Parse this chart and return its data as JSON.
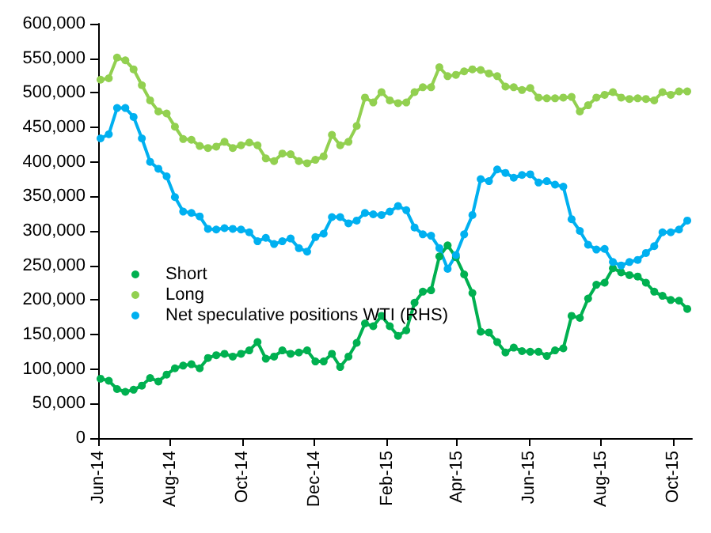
{
  "chart_data": {
    "type": "line",
    "x": [
      "2014-06-03",
      "2014-06-10",
      "2014-06-17",
      "2014-06-24",
      "2014-07-01",
      "2014-07-08",
      "2014-07-15",
      "2014-07-22",
      "2014-07-29",
      "2014-08-05",
      "2014-08-12",
      "2014-08-19",
      "2014-08-26",
      "2014-09-02",
      "2014-09-09",
      "2014-09-16",
      "2014-09-23",
      "2014-09-30",
      "2014-10-07",
      "2014-10-14",
      "2014-10-21",
      "2014-10-28",
      "2014-11-04",
      "2014-11-11",
      "2014-11-18",
      "2014-11-25",
      "2014-12-02",
      "2014-12-09",
      "2014-12-16",
      "2014-12-23",
      "2014-12-30",
      "2015-01-06",
      "2015-01-13",
      "2015-01-20",
      "2015-01-27",
      "2015-02-03",
      "2015-02-10",
      "2015-02-17",
      "2015-02-24",
      "2015-03-03",
      "2015-03-10",
      "2015-03-17",
      "2015-03-24",
      "2015-03-31",
      "2015-04-07",
      "2015-04-14",
      "2015-04-21",
      "2015-04-28",
      "2015-05-05",
      "2015-05-12",
      "2015-05-19",
      "2015-05-26",
      "2015-06-02",
      "2015-06-09",
      "2015-06-16",
      "2015-06-23",
      "2015-06-30",
      "2015-07-07",
      "2015-07-14",
      "2015-07-21",
      "2015-07-28",
      "2015-08-04",
      "2015-08-11",
      "2015-08-18",
      "2015-08-25",
      "2015-09-01",
      "2015-09-08",
      "2015-09-15",
      "2015-09-22",
      "2015-09-29",
      "2015-10-06",
      "2015-10-13"
    ],
    "series": [
      {
        "name": "Short",
        "color": "#00b050",
        "values": [
          86000,
          83000,
          71000,
          67000,
          70000,
          76000,
          87000,
          82000,
          92000,
          101000,
          105000,
          107000,
          101000,
          116000,
          120000,
          122000,
          118000,
          122000,
          127000,
          139000,
          115000,
          118000,
          127000,
          122000,
          124000,
          127000,
          111000,
          111000,
          122000,
          103000,
          118000,
          138000,
          166000,
          162000,
          177000,
          162000,
          148000,
          156000,
          196000,
          212000,
          214000,
          263000,
          279000,
          262000,
          237000,
          210000,
          154000,
          153000,
          139000,
          124000,
          131000,
          126000,
          125000,
          125000,
          119000,
          127000,
          130000,
          177000,
          174000,
          202000,
          222000,
          225000,
          246000,
          240000,
          236000,
          234000,
          225000,
          212000,
          206000,
          200000,
          199000,
          187000
        ]
      },
      {
        "name": "Long",
        "color": "#92d050",
        "values": [
          519000,
          521000,
          551000,
          547000,
          534000,
          511000,
          489000,
          473000,
          470000,
          451000,
          433000,
          432000,
          423000,
          420000,
          422000,
          429000,
          420000,
          424000,
          428000,
          424000,
          405000,
          401000,
          412000,
          411000,
          401000,
          398000,
          403000,
          408000,
          439000,
          424000,
          429000,
          452000,
          493000,
          486000,
          501000,
          489000,
          485000,
          486000,
          501000,
          508000,
          508000,
          537000,
          524000,
          526000,
          531000,
          534000,
          533000,
          528000,
          524000,
          509000,
          508000,
          504000,
          507000,
          493000,
          492000,
          492000,
          493000,
          494000,
          473000,
          482000,
          493000,
          497000,
          501000,
          493000,
          491000,
          492000,
          491000,
          489000,
          501000,
          497000,
          502000,
          502000
        ]
      },
      {
        "name": "Net speculative positions WTI (RHS)",
        "color": "#00b0f0",
        "values": [
          434000,
          440000,
          478000,
          478000,
          465000,
          434000,
          400000,
          390000,
          379000,
          349000,
          328000,
          326000,
          321000,
          303000,
          302000,
          304000,
          303000,
          302000,
          298000,
          285000,
          290000,
          281000,
          285000,
          289000,
          275000,
          270000,
          291000,
          296000,
          320000,
          320000,
          311000,
          315000,
          326000,
          324000,
          323000,
          328000,
          336000,
          330000,
          305000,
          295000,
          293000,
          275000,
          245000,
          265000,
          295000,
          323000,
          375000,
          372000,
          389000,
          384000,
          377000,
          381000,
          382000,
          370000,
          372000,
          367000,
          364000,
          317000,
          300000,
          280000,
          273000,
          274000,
          255000,
          250000,
          255000,
          258000,
          268000,
          278000,
          298000,
          298000,
          302000,
          315000
        ]
      }
    ],
    "xlim": [
      "2014-06-01",
      "2015-10-17"
    ],
    "xticks": [
      {
        "value": "2014-06-01",
        "label": "Jun-14"
      },
      {
        "value": "2014-08-01",
        "label": "Aug-14"
      },
      {
        "value": "2014-10-01",
        "label": "Oct-14"
      },
      {
        "value": "2014-12-01",
        "label": "Dec-14"
      },
      {
        "value": "2015-02-01",
        "label": "Feb-15"
      },
      {
        "value": "2015-04-01",
        "label": "Apr-15"
      },
      {
        "value": "2015-06-01",
        "label": "Jun-15"
      },
      {
        "value": "2015-08-01",
        "label": "Aug-15"
      },
      {
        "value": "2015-10-01",
        "label": "Oct-15"
      }
    ],
    "ylim": [
      0,
      600000
    ],
    "yticks": [
      {
        "value": 0,
        "label": "0"
      },
      {
        "value": 50000,
        "label": "50,000"
      },
      {
        "value": 100000,
        "label": "100,000"
      },
      {
        "value": 150000,
        "label": "150,000"
      },
      {
        "value": 200000,
        "label": "200,000"
      },
      {
        "value": 250000,
        "label": "250,000"
      },
      {
        "value": 300000,
        "label": "300,000"
      },
      {
        "value": 350000,
        "label": "350,000"
      },
      {
        "value": 400000,
        "label": "400,000"
      },
      {
        "value": 450000,
        "label": "450,000"
      },
      {
        "value": 500000,
        "label": "500,000"
      },
      {
        "value": 550000,
        "label": "550,000"
      },
      {
        "value": 600000,
        "label": "600,000"
      }
    ],
    "grid": false,
    "legend": "left",
    "marker": "circle",
    "line_style": "solid"
  }
}
